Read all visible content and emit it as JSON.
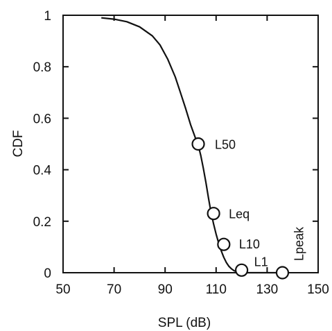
{
  "chart_data": {
    "type": "line",
    "title": "",
    "xlabel": "SPL (dB)",
    "ylabel": "CDF",
    "xlim": [
      50,
      150
    ],
    "ylim": [
      0,
      1
    ],
    "x_ticks": [
      50,
      70,
      90,
      110,
      130,
      150
    ],
    "y_ticks": [
      0,
      0.2,
      0.4,
      0.6,
      0.8,
      1
    ],
    "y_tick_labels": [
      "0",
      "0.2",
      "0.4",
      "0.6",
      "0.8",
      "1"
    ],
    "grid": false,
    "series": [
      {
        "x": [
          65,
          70,
          75,
          80,
          85,
          88,
          91,
          94,
          96,
          98,
          100,
          102,
          103,
          104,
          105,
          106,
          107,
          108,
          109,
          110,
          111,
          112,
          113,
          114,
          115,
          116,
          117,
          118,
          119,
          120,
          122,
          125,
          128,
          131,
          134,
          135
        ],
        "y": [
          0.99,
          0.985,
          0.975,
          0.955,
          0.92,
          0.885,
          0.83,
          0.76,
          0.7,
          0.64,
          0.575,
          0.52,
          0.495,
          0.455,
          0.405,
          0.35,
          0.29,
          0.235,
          0.19,
          0.15,
          0.115,
          0.085,
          0.06,
          0.04,
          0.025,
          0.015,
          0.008,
          0.004,
          0.002,
          0.001,
          0,
          0,
          0,
          0,
          0,
          0
        ]
      }
    ],
    "markers": [
      {
        "label": "L50",
        "x": 103,
        "y": 0.5
      },
      {
        "label": "Leq",
        "x": 109,
        "y": 0.23
      },
      {
        "label": "L10",
        "x": 113,
        "y": 0.11
      },
      {
        "label": "L1",
        "x": 120,
        "y": 0.01
      },
      {
        "label": "Lpeak",
        "x": 136,
        "y": 0
      }
    ],
    "colors": {
      "line": "#111111",
      "axis": "#111111"
    }
  }
}
